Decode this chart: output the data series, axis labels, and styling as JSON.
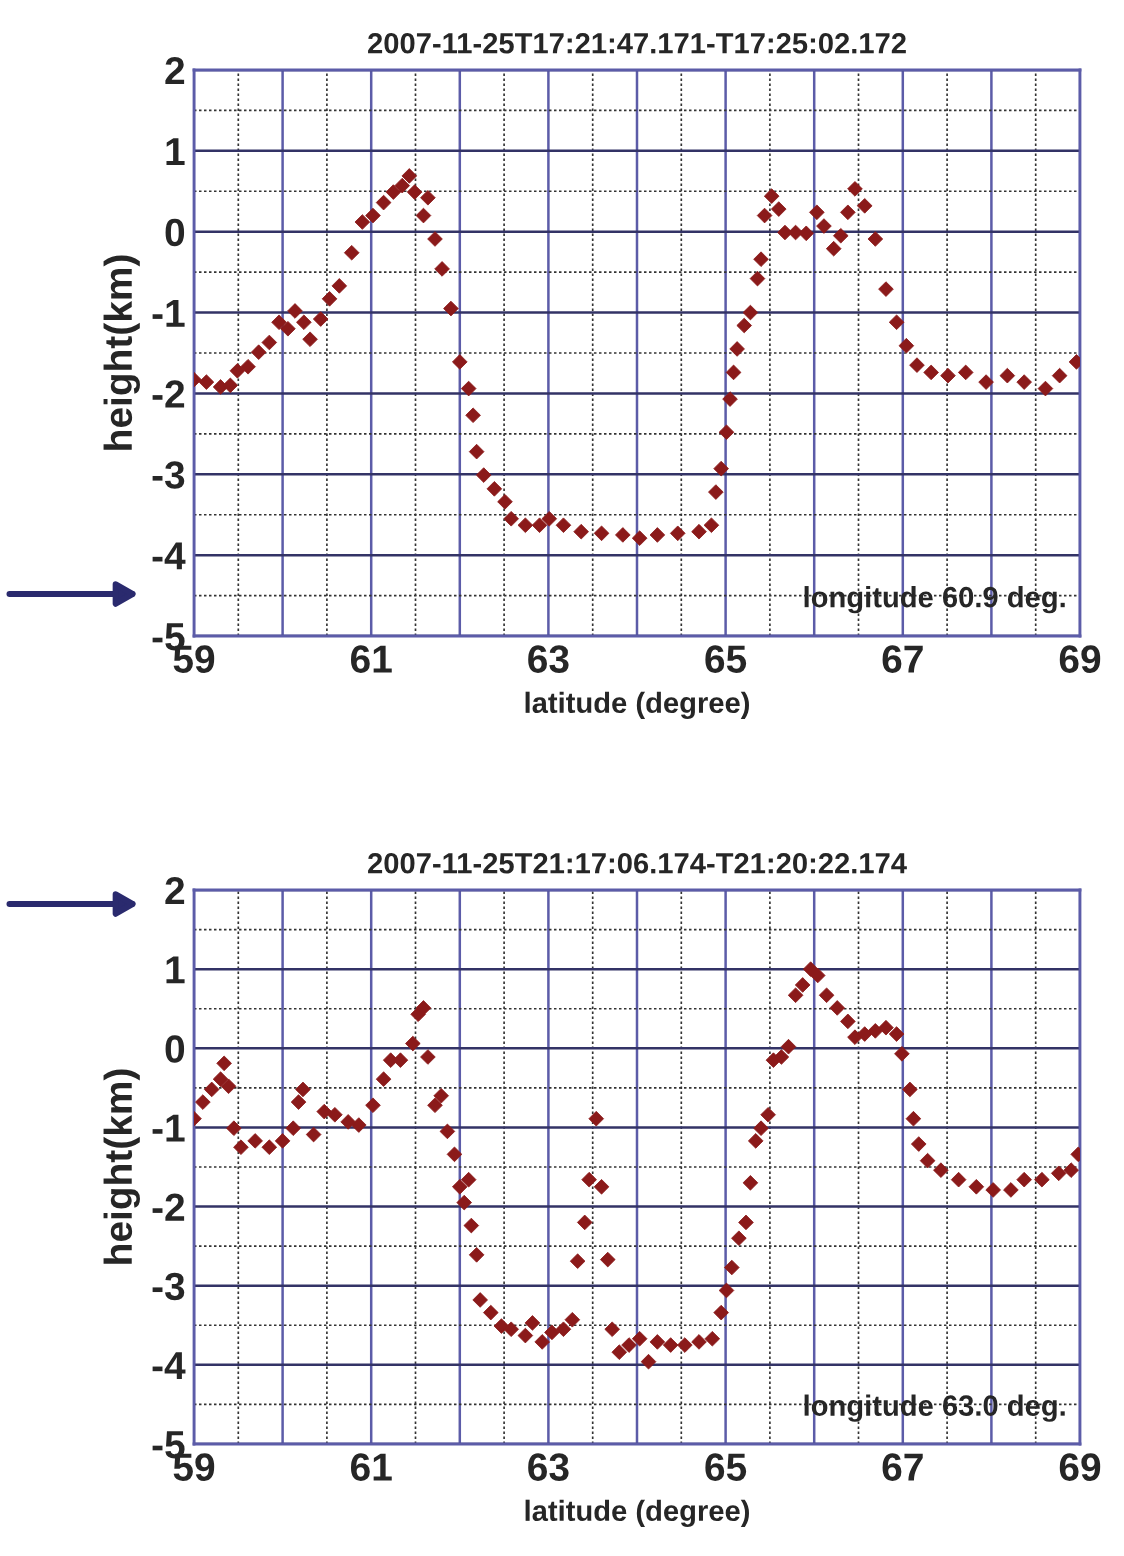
{
  "chart_data": [
    {
      "type": "scatter",
      "title": "2007-11-25T17:21:47.171-T17:25:02.172",
      "xlabel": "latitude (degree)",
      "ylabel": "height(km)",
      "annotations": [
        "longitude 60.9 deg."
      ],
      "marker": "diamond",
      "grid": true,
      "xlim": [
        59,
        69
      ],
      "ylim": [
        -5,
        2
      ],
      "xticks": [
        59,
        {
          "value": 60,
          "label": null
        },
        61,
        {
          "value": 62,
          "label": null
        },
        63,
        {
          "value": 64,
          "label": null
        },
        65,
        {
          "value": 66,
          "label": null
        },
        67,
        {
          "value": 68,
          "label": null
        },
        69
      ],
      "yticks": [
        -5,
        -4,
        -3,
        -2,
        -1,
        0,
        1,
        2
      ],
      "series": [
        {
          "color": "#8b1a1a",
          "x": [
            59.0,
            59.14,
            59.3,
            59.41,
            59.49,
            59.61,
            59.73,
            59.85,
            59.96,
            60.06,
            60.14,
            60.24,
            60.31,
            60.43,
            60.53,
            60.64,
            60.78,
            60.9,
            61.02,
            61.14,
            61.25,
            61.35,
            61.43,
            61.49,
            61.59,
            61.64,
            61.72,
            61.8,
            61.9,
            62.0,
            62.1,
            62.15,
            62.19,
            62.27,
            62.39,
            62.51,
            62.58,
            62.74,
            62.9,
            63.01,
            63.17,
            63.37,
            63.6,
            63.84,
            64.03,
            64.23,
            64.46,
            64.7,
            64.84,
            64.89,
            64.95,
            65.01,
            65.05,
            65.09,
            65.13,
            65.21,
            65.28,
            65.36,
            65.4,
            65.44,
            65.52,
            65.6,
            65.67,
            65.79,
            65.91,
            66.03,
            66.11,
            66.22,
            66.3,
            66.38,
            66.46,
            66.57,
            66.69,
            66.81,
            66.93,
            67.04,
            67.16,
            67.32,
            67.51,
            67.71,
            67.94,
            68.18,
            68.37,
            68.61,
            68.77,
            68.96
          ],
          "values": [
            -1.83,
            -1.86,
            -1.92,
            -1.9,
            -1.72,
            -1.67,
            -1.49,
            -1.37,
            -1.12,
            -1.2,
            -0.98,
            -1.12,
            -1.33,
            -1.08,
            -0.83,
            -0.67,
            -0.26,
            0.12,
            0.2,
            0.36,
            0.49,
            0.57,
            0.69,
            0.49,
            0.2,
            0.42,
            -0.09,
            -0.46,
            -0.95,
            -1.61,
            -1.94,
            -2.27,
            -2.72,
            -3.01,
            -3.18,
            -3.34,
            -3.55,
            -3.63,
            -3.63,
            -3.55,
            -3.63,
            -3.71,
            -3.73,
            -3.75,
            -3.79,
            -3.75,
            -3.73,
            -3.71,
            -3.63,
            -3.22,
            -2.93,
            -2.48,
            -2.07,
            -1.74,
            -1.45,
            -1.16,
            -1.0,
            -0.58,
            -0.34,
            0.2,
            0.44,
            0.28,
            -0.01,
            -0.01,
            -0.02,
            0.24,
            0.07,
            -0.21,
            -0.05,
            0.24,
            0.53,
            0.32,
            -0.09,
            -0.71,
            -1.12,
            -1.41,
            -1.65,
            -1.74,
            -1.78,
            -1.74,
            -1.86,
            -1.78,
            -1.86,
            -1.94,
            -1.78,
            -1.61
          ]
        }
      ]
    },
    {
      "type": "scatter",
      "title": "2007-11-25T21:17:06.174-T21:20:22.174",
      "xlabel": "latitude (degree)",
      "ylabel": "height(km)",
      "annotations": [
        "longitude 63.0 deg."
      ],
      "marker": "diamond",
      "grid": true,
      "xlim": [
        59,
        69
      ],
      "ylim": [
        -5,
        2
      ],
      "xticks": [
        59,
        {
          "value": 60,
          "label": null
        },
        61,
        {
          "value": 62,
          "label": null
        },
        63,
        {
          "value": 64,
          "label": null
        },
        65,
        {
          "value": 66,
          "label": null
        },
        67,
        {
          "value": 68,
          "label": null
        },
        69
      ],
      "yticks": [
        -5,
        -4,
        -3,
        -2,
        -1,
        0,
        1,
        2
      ],
      "series": [
        {
          "color": "#8b1a1a",
          "x": [
            59.0,
            59.1,
            59.2,
            59.3,
            59.34,
            59.39,
            59.45,
            59.53,
            59.69,
            59.85,
            60.0,
            60.12,
            60.18,
            60.23,
            60.35,
            60.47,
            60.59,
            60.74,
            60.86,
            61.02,
            61.14,
            61.22,
            61.33,
            61.47,
            61.53,
            61.59,
            61.64,
            61.72,
            61.79,
            61.86,
            61.94,
            62.0,
            62.05,
            62.1,
            62.13,
            62.19,
            62.23,
            62.35,
            62.47,
            62.58,
            62.74,
            62.82,
            62.93,
            63.04,
            63.17,
            63.27,
            63.33,
            63.41,
            63.46,
            63.54,
            63.6,
            63.67,
            63.72,
            63.8,
            63.91,
            64.03,
            64.13,
            64.23,
            64.38,
            64.54,
            64.7,
            64.85,
            64.95,
            65.01,
            65.07,
            65.15,
            65.23,
            65.28,
            65.34,
            65.4,
            65.48,
            65.54,
            65.63,
            65.71,
            65.79,
            65.87,
            65.96,
            66.04,
            66.14,
            66.26,
            66.38,
            66.46,
            66.57,
            66.69,
            66.81,
            66.93,
            66.99,
            67.08,
            67.12,
            67.18,
            67.28,
            67.43,
            67.63,
            67.83,
            68.02,
            68.22,
            68.37,
            68.57,
            68.76,
            68.9,
            68.98
          ],
          "values": [
            -0.89,
            -0.68,
            -0.52,
            -0.39,
            -0.19,
            -0.48,
            -1.01,
            -1.25,
            -1.17,
            -1.25,
            -1.17,
            -1.01,
            -0.68,
            -0.52,
            -1.09,
            -0.8,
            -0.84,
            -0.93,
            -0.97,
            -0.72,
            -0.39,
            -0.15,
            -0.15,
            0.06,
            0.43,
            0.51,
            -0.11,
            -0.72,
            -0.6,
            -1.05,
            -1.34,
            -1.75,
            -1.95,
            -1.66,
            -2.24,
            -2.61,
            -3.18,
            -3.34,
            -3.51,
            -3.55,
            -3.63,
            -3.47,
            -3.71,
            -3.59,
            -3.55,
            -3.43,
            -2.69,
            -2.2,
            -1.66,
            -0.89,
            -1.75,
            -2.67,
            -3.55,
            -3.84,
            -3.75,
            -3.67,
            -3.96,
            -3.71,
            -3.75,
            -3.75,
            -3.71,
            -3.67,
            -3.34,
            -3.06,
            -2.77,
            -2.4,
            -2.2,
            -1.7,
            -1.17,
            -1.01,
            -0.84,
            -0.15,
            -0.11,
            0.02,
            0.67,
            0.8,
            1.0,
            0.92,
            0.67,
            0.51,
            0.34,
            0.14,
            0.18,
            0.22,
            0.26,
            0.18,
            -0.07,
            -0.52,
            -0.89,
            -1.21,
            -1.42,
            -1.54,
            -1.66,
            -1.75,
            -1.79,
            -1.79,
            -1.66,
            -1.66,
            -1.58,
            -1.54,
            -1.34
          ]
        }
      ]
    }
  ]
}
